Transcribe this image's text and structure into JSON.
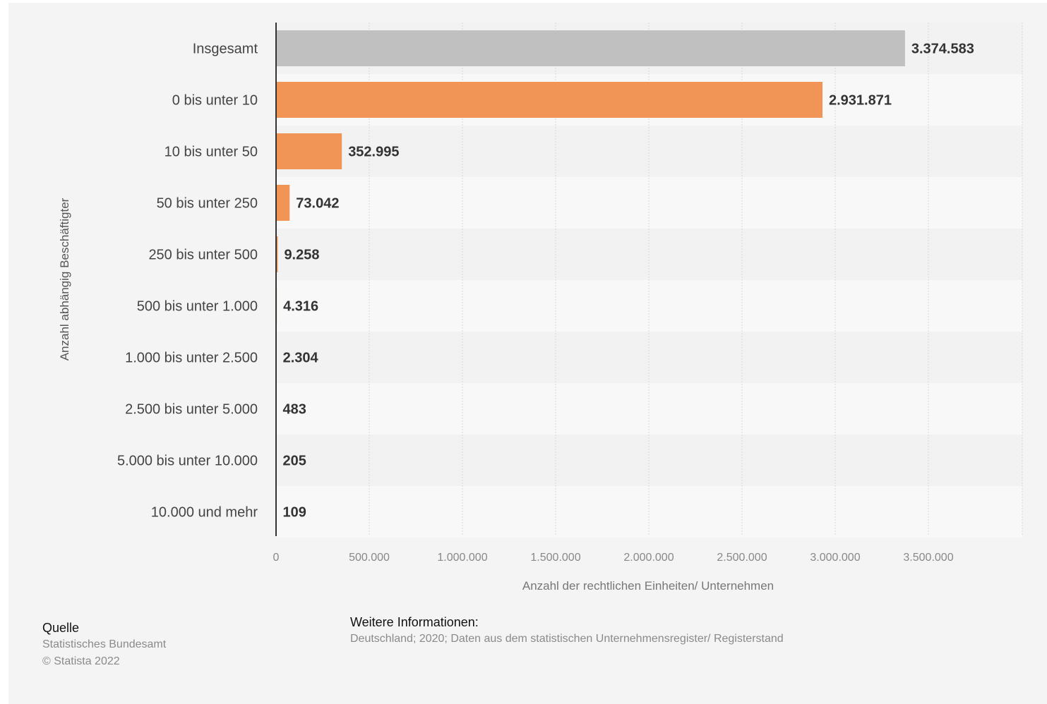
{
  "chart_data": {
    "type": "bar",
    "orientation": "horizontal",
    "categories": [
      "Insgesamt",
      "0 bis unter 10",
      "10 bis unter 50",
      "50 bis unter 250",
      "250 bis unter 500",
      "500 bis unter 1.000",
      "1.000 bis unter 2.500",
      "2.500 bis unter 5.000",
      "5.000 bis unter 10.000",
      "10.000 und mehr"
    ],
    "values": [
      3374583,
      2931871,
      352995,
      73042,
      9258,
      4316,
      2304,
      483,
      205,
      109
    ],
    "value_labels": [
      "3.374.583",
      "2.931.871",
      "352.995",
      "73.042",
      "9.258",
      "4.316",
      "2.304",
      "483",
      "205",
      "109"
    ],
    "bar_colors": [
      "#c0c0c0",
      "#f09555",
      "#f09555",
      "#f09555",
      "#f09555",
      "#f09555",
      "#f09555",
      "#f09555",
      "#f09555",
      "#f09555"
    ],
    "xlim": [
      0,
      4000000
    ],
    "x_ticks": [
      0,
      500000,
      1000000,
      1500000,
      2000000,
      2500000,
      3000000,
      3500000
    ],
    "x_tick_labels": [
      "0",
      "500.000",
      "1.000.000",
      "1.500.000",
      "2.000.000",
      "2.500.000",
      "3.000.000",
      "3.500.000"
    ],
    "xlabel": "Anzahl der rechtlichen Einheiten/ Unternehmen",
    "ylabel": "Anzahl abhängig Beschäftigter",
    "grid": true
  },
  "footer": {
    "source_title": "Quelle",
    "source_name": "Statistisches Bundesamt",
    "copyright": "© Statista 2022",
    "info_title": "Weitere Informationen:",
    "info_text": "Deutschland; 2020; Daten aus dem statistischen Unternehmensregister/ Registerstand"
  }
}
